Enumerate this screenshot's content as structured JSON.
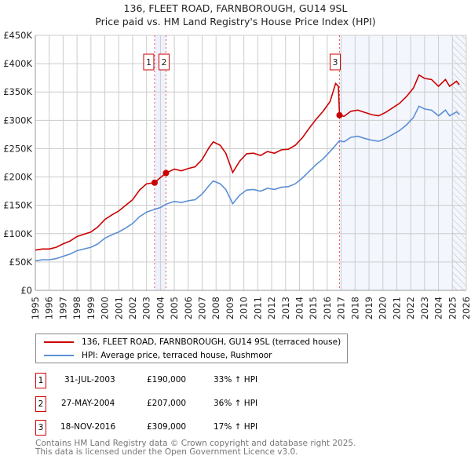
{
  "chart_data": {
    "type": "line",
    "title": "136, FLEET ROAD, FARNBOROUGH, GU14 9SL",
    "subtitle": "Price paid vs. HM Land Registry's House Price Index (HPI)",
    "xlim": [
      1995,
      2026
    ],
    "ylim": [
      0,
      450000
    ],
    "x_ticks": [
      "1995",
      "1996",
      "1997",
      "1998",
      "1999",
      "2000",
      "2001",
      "2002",
      "2003",
      "2004",
      "2005",
      "2006",
      "2007",
      "2008",
      "2009",
      "2010",
      "2011",
      "2012",
      "2013",
      "2014",
      "2015",
      "2016",
      "2017",
      "2018",
      "2019",
      "2020",
      "2021",
      "2022",
      "2023",
      "2024",
      "2025",
      "2026"
    ],
    "y_ticks": [
      {
        "v": 0,
        "label": "£0"
      },
      {
        "v": 50000,
        "label": "£50K"
      },
      {
        "v": 100000,
        "label": "£100K"
      },
      {
        "v": 150000,
        "label": "£150K"
      },
      {
        "v": 200000,
        "label": "£200K"
      },
      {
        "v": 250000,
        "label": "£250K"
      },
      {
        "v": 300000,
        "label": "£300K"
      },
      {
        "v": 350000,
        "label": "£350K"
      },
      {
        "v": 400000,
        "label": "£400K"
      },
      {
        "v": 450000,
        "label": "£450K"
      }
    ],
    "grid": true,
    "legend_placement": "below",
    "series": [
      {
        "name": "136, FLEET ROAD, FARNBOROUGH, GU14 9SL (terraced house)",
        "color": "#cc0000",
        "x": [
          1995.0,
          1995.5,
          1996.0,
          1996.5,
          1997.0,
          1997.5,
          1998.0,
          1998.5,
          1999.0,
          1999.5,
          2000.0,
          2000.5,
          2001.0,
          2001.5,
          2002.0,
          2002.5,
          2003.0,
          2003.58,
          2004.0,
          2004.4,
          2005.0,
          2005.5,
          2006.0,
          2006.5,
          2007.0,
          2007.5,
          2007.8,
          2008.3,
          2008.7,
          2009.2,
          2009.7,
          2010.2,
          2010.7,
          2011.2,
          2011.7,
          2012.2,
          2012.7,
          2013.2,
          2013.7,
          2014.2,
          2014.7,
          2015.2,
          2015.7,
          2016.2,
          2016.6,
          2016.8,
          2016.88,
          2017.2,
          2017.7,
          2018.2,
          2018.7,
          2019.2,
          2019.7,
          2020.2,
          2020.7,
          2021.2,
          2021.7,
          2022.2,
          2022.6,
          2023.0,
          2023.5,
          2024.0,
          2024.5,
          2024.8,
          2025.3,
          2025.5
        ],
        "y": [
          71000,
          73000,
          73000,
          76000,
          82000,
          87000,
          95000,
          99000,
          103000,
          112000,
          125000,
          133000,
          140000,
          150000,
          160000,
          177000,
          188000,
          190000,
          199000,
          207000,
          214000,
          211000,
          215000,
          218000,
          231000,
          252000,
          262000,
          256000,
          242000,
          208000,
          228000,
          241000,
          242000,
          238000,
          245000,
          242000,
          248000,
          249000,
          256000,
          269000,
          286000,
          302000,
          316000,
          333000,
          365000,
          360000,
          309000,
          307000,
          316000,
          318000,
          314000,
          310000,
          308000,
          314000,
          322000,
          330000,
          342000,
          357000,
          380000,
          374000,
          372000,
          360000,
          372000,
          360000,
          369000,
          363000
        ]
      },
      {
        "name": "HPI: Average price, terraced house, Rushmoor",
        "color": "#5b8fd4",
        "x": [
          1995.0,
          1995.5,
          1996.0,
          1996.5,
          1997.0,
          1997.5,
          1998.0,
          1998.5,
          1999.0,
          1999.5,
          2000.0,
          2000.5,
          2001.0,
          2001.5,
          2002.0,
          2002.5,
          2003.0,
          2003.58,
          2004.0,
          2004.4,
          2005.0,
          2005.5,
          2006.0,
          2006.5,
          2007.0,
          2007.5,
          2007.8,
          2008.3,
          2008.7,
          2009.2,
          2009.7,
          2010.2,
          2010.7,
          2011.2,
          2011.7,
          2012.2,
          2012.7,
          2013.2,
          2013.7,
          2014.2,
          2014.7,
          2015.2,
          2015.7,
          2016.2,
          2016.88,
          2017.2,
          2017.7,
          2018.2,
          2018.7,
          2019.2,
          2019.7,
          2020.2,
          2020.7,
          2021.2,
          2021.7,
          2022.2,
          2022.6,
          2023.0,
          2023.5,
          2024.0,
          2024.5,
          2024.8,
          2025.3,
          2025.5
        ],
        "y": [
          52000,
          54000,
          54000,
          56000,
          60000,
          64000,
          70000,
          73000,
          76000,
          82000,
          92000,
          98000,
          103000,
          110000,
          118000,
          130000,
          138000,
          143000,
          146000,
          152000,
          157000,
          155000,
          158000,
          160000,
          170000,
          185000,
          193000,
          188000,
          178000,
          153000,
          168000,
          177000,
          178000,
          175000,
          180000,
          178000,
          182000,
          183000,
          188000,
          198000,
          210000,
          222000,
          232000,
          245000,
          264000,
          262000,
          270000,
          272000,
          268000,
          265000,
          263000,
          268000,
          275000,
          282000,
          292000,
          305000,
          325000,
          320000,
          318000,
          308000,
          318000,
          308000,
          315000,
          310000
        ]
      }
    ],
    "sales": [
      {
        "id": "1",
        "x": 2003.58,
        "price": 190000,
        "date": "31-JUL-2003",
        "price_label": "£190,000",
        "hpi": "33% ↑ HPI"
      },
      {
        "id": "2",
        "x": 2004.4,
        "price": 207000,
        "date": "27-MAY-2004",
        "price_label": "£207,000",
        "hpi": "36% ↑ HPI"
      },
      {
        "id": "3",
        "x": 2016.88,
        "price": 309000,
        "date": "18-NOV-2016",
        "price_label": "£309,000",
        "hpi": "17% ↑ HPI"
      }
    ],
    "forecast_from": 2025.0
  },
  "footer": {
    "line1": "Contains HM Land Registry data © Crown copyright and database right 2025.",
    "line2": "This data is licensed under the Open Government Licence v3.0."
  }
}
